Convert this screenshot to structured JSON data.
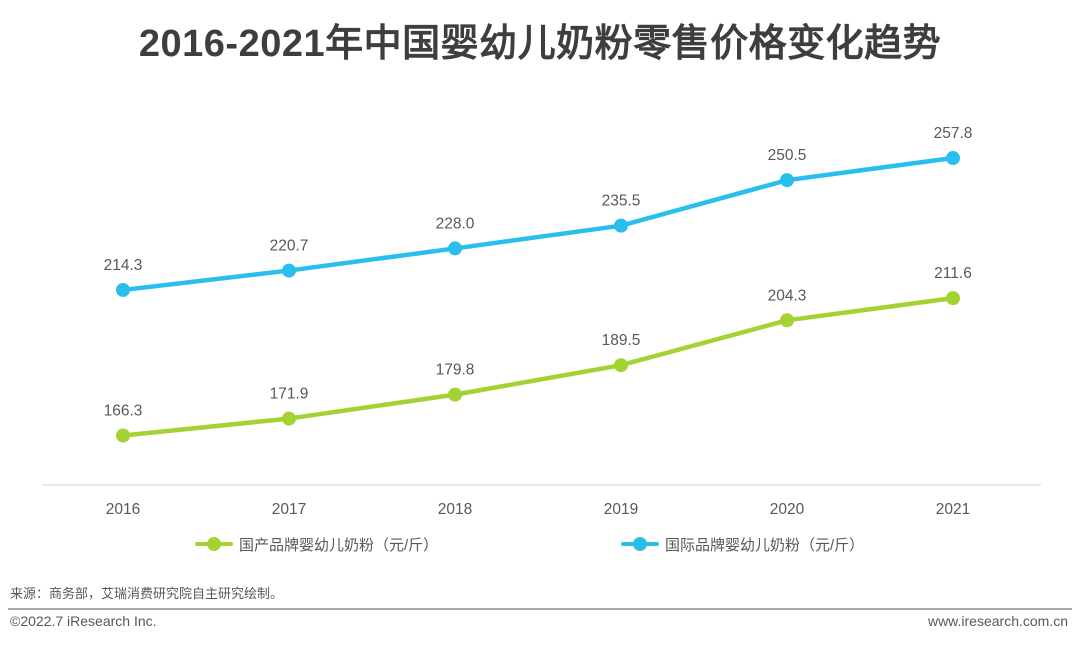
{
  "title": "2016-2021年中国婴幼儿奶粉零售价格变化趋势",
  "chart_data": {
    "type": "line",
    "categories": [
      "2016",
      "2017",
      "2018",
      "2019",
      "2020",
      "2021"
    ],
    "series": [
      {
        "name": "国产品牌婴幼儿奶粉（元/斤）",
        "color": "#a3d233",
        "values": [
          166.3,
          171.9,
          179.8,
          189.5,
          204.3,
          211.6
        ]
      },
      {
        "name": "国际品牌婴幼儿奶粉（元/斤）",
        "color": "#29bfec",
        "values": [
          214.3,
          220.7,
          228.0,
          235.5,
          250.5,
          257.8
        ]
      }
    ],
    "title": "2016-2021年中国婴幼儿奶粉零售价格变化趋势",
    "xlabel": "",
    "ylabel": "",
    "ylim": [
      150,
      270
    ],
    "grid": false,
    "legend_position": "bottom",
    "data_labels": true,
    "data_label_color": "#595757",
    "axis_line_color": "#e9e9e9",
    "tick_label_color": "#595757"
  },
  "footer": {
    "source": "来源：商务部，艾瑞消费研究院自主研究绘制。",
    "copyright": "©2022.7 iResearch Inc.",
    "website": "www.iresearch.com.cn"
  }
}
